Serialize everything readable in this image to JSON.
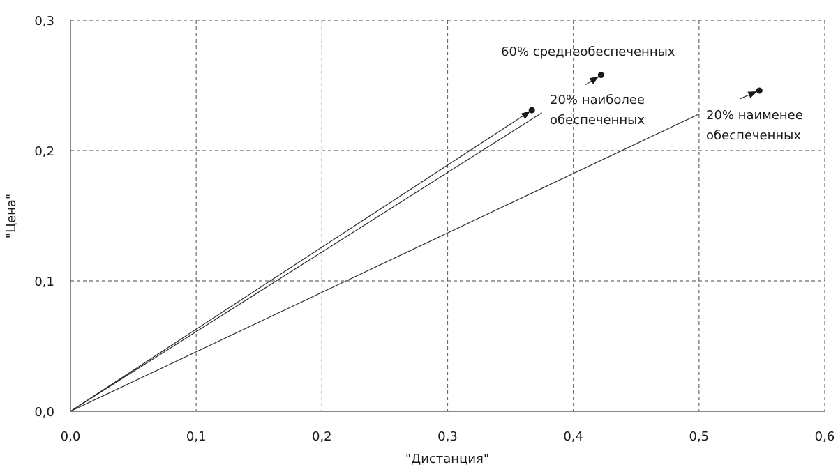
{
  "chart_data": {
    "type": "line",
    "xlabel": "\"Дистанция\"",
    "ylabel": "\"Цена\"",
    "xlim": [
      0,
      0.6
    ],
    "ylim": [
      0,
      0.3
    ],
    "x_ticks": [
      "0,0",
      "0,1",
      "0,2",
      "0,3",
      "0,4",
      "0,5",
      "0,6"
    ],
    "y_ticks": [
      "0,0",
      "0,1",
      "0,2",
      "0,3"
    ],
    "grid": true,
    "series": [
      {
        "name": "20% наиболее обеспеченных",
        "label_lines": [
          "20% наиболее",
          "обеспеченных"
        ],
        "x": [
          0,
          0.367
        ],
        "y": [
          0,
          0.231
        ]
      },
      {
        "name": "60% среднеобеспеченных",
        "label_lines": [
          "60% среднеобеспеченных"
        ],
        "x": [
          0,
          0.375
        ],
        "y": [
          0,
          0.229
        ],
        "endpoint": [
          0.422,
          0.258
        ]
      },
      {
        "name": "20% наименее обеспеченных",
        "label_lines": [
          "20% наименее",
          "обеспеченных"
        ],
        "x": [
          0,
          0.5
        ],
        "y": [
          0,
          0.228
        ],
        "endpoint": [
          0.548,
          0.246
        ]
      }
    ]
  }
}
